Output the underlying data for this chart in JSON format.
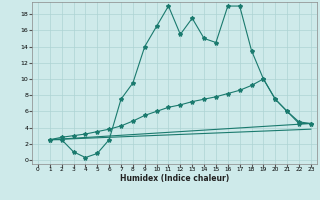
{
  "xlabel": "Humidex (Indice chaleur)",
  "bg_color": "#ceeaea",
  "grid_color": "#add4d4",
  "line_color": "#1a7a6e",
  "xlim": [
    -0.5,
    23.5
  ],
  "ylim": [
    -0.5,
    19.5
  ],
  "xticks": [
    0,
    1,
    2,
    3,
    4,
    5,
    6,
    7,
    8,
    9,
    10,
    11,
    12,
    13,
    14,
    15,
    16,
    17,
    18,
    19,
    20,
    21,
    22,
    23
  ],
  "yticks": [
    0,
    2,
    4,
    6,
    8,
    10,
    12,
    14,
    16,
    18
  ],
  "line1_x": [
    1,
    2,
    3,
    4,
    5,
    6,
    7,
    8,
    9,
    10,
    11,
    12,
    13,
    14,
    15,
    16,
    17,
    18,
    19,
    20,
    21,
    22,
    23
  ],
  "line1_y": [
    2.5,
    2.5,
    1.0,
    0.3,
    0.8,
    2.5,
    7.5,
    9.5,
    14.0,
    16.5,
    19.0,
    15.5,
    17.5,
    15.0,
    14.5,
    19.0,
    19.0,
    13.5,
    10.0,
    7.5,
    6.0,
    4.5,
    4.5
  ],
  "line2_x": [
    1,
    2,
    3,
    4,
    5,
    6,
    7,
    8,
    9,
    10,
    11,
    12,
    13,
    14,
    15,
    16,
    17,
    18,
    19,
    20,
    21,
    22,
    23
  ],
  "line2_y": [
    2.5,
    2.8,
    3.0,
    3.2,
    3.5,
    3.8,
    4.2,
    4.8,
    5.5,
    6.0,
    6.5,
    6.8,
    7.2,
    7.5,
    7.8,
    8.2,
    8.6,
    9.2,
    10.0,
    7.5,
    6.0,
    4.7,
    4.5
  ],
  "line3_x": [
    1,
    23
  ],
  "line3_y": [
    2.5,
    4.5
  ],
  "line4_x": [
    1,
    23
  ],
  "line4_y": [
    2.5,
    3.8
  ]
}
